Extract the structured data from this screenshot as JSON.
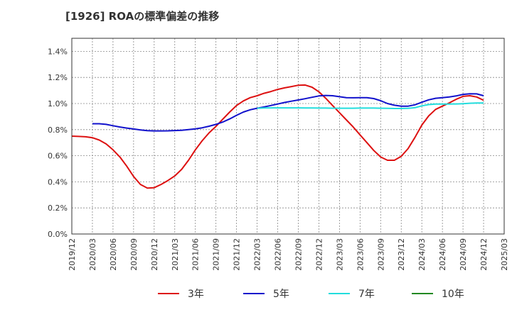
{
  "chart_data": {
    "type": "line",
    "title": "[1926]  ROAの標準偏差の推移",
    "xlabel": "",
    "ylabel": "",
    "ylim": [
      0,
      1.5
    ],
    "y_ticks": [
      "0.0%",
      "0.2%",
      "0.4%",
      "0.6%",
      "0.8%",
      "1.0%",
      "1.2%",
      "1.4%"
    ],
    "y_tick_values": [
      0,
      0.2,
      0.4,
      0.6,
      0.8,
      1.0,
      1.2,
      1.4
    ],
    "x_range": [
      "2019-12",
      "2025-03"
    ],
    "x_ticks": [
      "2019/12",
      "2020/03",
      "2020/06",
      "2020/09",
      "2020/12",
      "2021/03",
      "2021/06",
      "2021/09",
      "2021/12",
      "2022/03",
      "2022/06",
      "2022/09",
      "2022/12",
      "2023/03",
      "2023/06",
      "2023/09",
      "2023/12",
      "2024/03",
      "2024/06",
      "2024/09",
      "2024/12",
      "2025/03"
    ],
    "grid": true,
    "legend_position": "bottom",
    "series": [
      {
        "name": "3年",
        "color": "#dd1111",
        "x": [
          "2019-12",
          "2020-01",
          "2020-02",
          "2020-03",
          "2020-04",
          "2020-05",
          "2020-06",
          "2020-07",
          "2020-08",
          "2020-09",
          "2020-10",
          "2020-11",
          "2020-12",
          "2021-01",
          "2021-02",
          "2021-03",
          "2021-04",
          "2021-05",
          "2021-06",
          "2021-07",
          "2021-08",
          "2021-09",
          "2021-10",
          "2021-11",
          "2021-12",
          "2022-01",
          "2022-02",
          "2022-03",
          "2022-04",
          "2022-05",
          "2022-06",
          "2022-07",
          "2022-08",
          "2022-09",
          "2022-10",
          "2022-11",
          "2022-12",
          "2023-01",
          "2023-02",
          "2023-03",
          "2023-04",
          "2023-05",
          "2023-06",
          "2023-07",
          "2023-08",
          "2023-09",
          "2023-10",
          "2023-11",
          "2023-12",
          "2024-01",
          "2024-02",
          "2024-03",
          "2024-04",
          "2024-05",
          "2024-06",
          "2024-07",
          "2024-08",
          "2024-09",
          "2024-10",
          "2024-11",
          "2024-12"
        ],
        "values": [
          0.75,
          0.748,
          0.745,
          0.738,
          0.72,
          0.69,
          0.645,
          0.59,
          0.52,
          0.44,
          0.38,
          0.352,
          0.355,
          0.38,
          0.41,
          0.445,
          0.495,
          0.565,
          0.645,
          0.715,
          0.775,
          0.825,
          0.88,
          0.935,
          0.985,
          1.02,
          1.045,
          1.06,
          1.078,
          1.092,
          1.108,
          1.12,
          1.13,
          1.14,
          1.142,
          1.125,
          1.09,
          1.04,
          0.985,
          0.93,
          0.875,
          0.82,
          0.76,
          0.7,
          0.64,
          0.59,
          0.565,
          0.565,
          0.595,
          0.655,
          0.74,
          0.835,
          0.905,
          0.955,
          0.98,
          1.005,
          1.032,
          1.055,
          1.06,
          1.05,
          1.025
        ]
      },
      {
        "name": "5年",
        "color": "#1111cc",
        "x": [
          "2020-03",
          "2020-04",
          "2020-05",
          "2020-06",
          "2020-07",
          "2020-08",
          "2020-09",
          "2020-10",
          "2020-11",
          "2020-12",
          "2021-01",
          "2021-02",
          "2021-03",
          "2021-04",
          "2021-05",
          "2021-06",
          "2021-07",
          "2021-08",
          "2021-09",
          "2021-10",
          "2021-11",
          "2021-12",
          "2022-01",
          "2022-02",
          "2022-03",
          "2022-04",
          "2022-05",
          "2022-06",
          "2022-07",
          "2022-08",
          "2022-09",
          "2022-10",
          "2022-11",
          "2022-12",
          "2023-01",
          "2023-02",
          "2023-03",
          "2023-04",
          "2023-05",
          "2023-06",
          "2023-07",
          "2023-08",
          "2023-09",
          "2023-10",
          "2023-11",
          "2023-12",
          "2024-01",
          "2024-02",
          "2024-03",
          "2024-04",
          "2024-05",
          "2024-06",
          "2024-07",
          "2024-08",
          "2024-09",
          "2024-10",
          "2024-11",
          "2024-12"
        ],
        "values": [
          0.845,
          0.845,
          0.84,
          0.83,
          0.82,
          0.812,
          0.805,
          0.798,
          0.792,
          0.79,
          0.79,
          0.791,
          0.793,
          0.795,
          0.8,
          0.806,
          0.814,
          0.826,
          0.84,
          0.858,
          0.882,
          0.91,
          0.935,
          0.952,
          0.964,
          0.974,
          0.985,
          0.996,
          1.008,
          1.018,
          1.027,
          1.037,
          1.048,
          1.058,
          1.062,
          1.06,
          1.052,
          1.045,
          1.044,
          1.045,
          1.045,
          1.038,
          1.022,
          1.0,
          0.987,
          0.98,
          0.98,
          0.99,
          1.01,
          1.028,
          1.04,
          1.045,
          1.05,
          1.058,
          1.07,
          1.075,
          1.074,
          1.06
        ]
      },
      {
        "name": "7年",
        "color": "#22dddd",
        "x": [
          "2022-03",
          "2022-04",
          "2022-05",
          "2022-06",
          "2022-07",
          "2022-08",
          "2022-09",
          "2022-10",
          "2022-11",
          "2022-12",
          "2023-01",
          "2023-02",
          "2023-03",
          "2023-04",
          "2023-05",
          "2023-06",
          "2023-07",
          "2023-08",
          "2023-09",
          "2023-10",
          "2023-11",
          "2023-12",
          "2024-01",
          "2024-02",
          "2024-03",
          "2024-04",
          "2024-05",
          "2024-06",
          "2024-07",
          "2024-08",
          "2024-09",
          "2024-10",
          "2024-11",
          "2024-12"
        ],
        "values": [
          0.963,
          0.966,
          0.967,
          0.967,
          0.967,
          0.967,
          0.967,
          0.966,
          0.966,
          0.965,
          0.965,
          0.964,
          0.964,
          0.964,
          0.964,
          0.965,
          0.965,
          0.965,
          0.964,
          0.963,
          0.962,
          0.962,
          0.963,
          0.968,
          0.982,
          0.992,
          0.996,
          0.996,
          0.996,
          0.997,
          0.999,
          1.002,
          1.004,
          1.004
        ]
      },
      {
        "name": "10年",
        "color": "#228822",
        "x": [],
        "values": []
      }
    ]
  }
}
